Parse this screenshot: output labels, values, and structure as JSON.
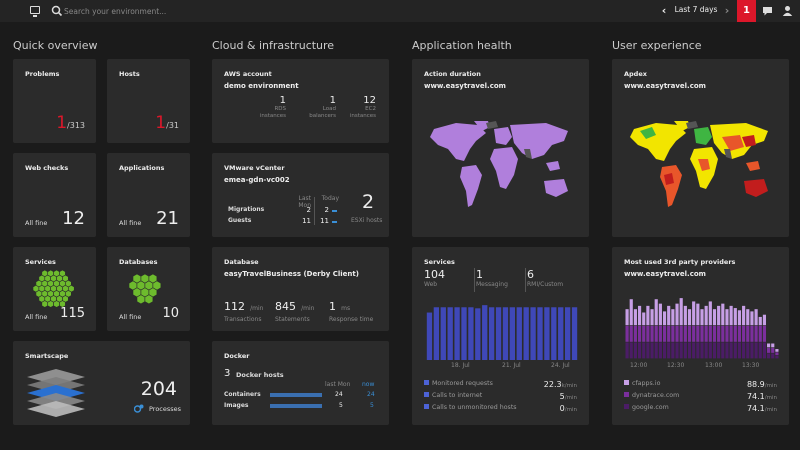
{
  "topbar": {
    "search_placeholder": "Search your environment...",
    "timeframe": "Last 7 days",
    "notifications": "1"
  },
  "sections": {
    "quick": "Quick overview",
    "cloud": "Cloud & infrastructure",
    "app": "Application health",
    "ux": "User experience"
  },
  "quick": {
    "problems": {
      "title": "Problems",
      "current": "1",
      "total": "/313"
    },
    "hosts": {
      "title": "Hosts",
      "current": "1",
      "total": "/31"
    },
    "webchecks": {
      "title": "Web checks",
      "status": "All fine",
      "count": "12"
    },
    "applications": {
      "title": "Applications",
      "status": "All fine",
      "count": "21"
    },
    "services": {
      "title": "Services",
      "status": "All fine",
      "count": "115"
    },
    "databases": {
      "title": "Databases",
      "status": "All fine",
      "count": "10"
    },
    "smartscape": {
      "title": "Smartscape",
      "count": "204",
      "label": "Processes"
    }
  },
  "aws": {
    "title": "AWS account",
    "name": "demo environment",
    "metrics": [
      {
        "value": "1",
        "label1": "RDS",
        "label2": "instances"
      },
      {
        "value": "1",
        "label1": "Load",
        "label2": "balancers"
      },
      {
        "value": "12",
        "label1": "EC2",
        "label2": "instances"
      }
    ]
  },
  "vmware": {
    "title": "VMware vCenter",
    "name": "emea-gdn-vc002",
    "col_last": "Last Mon",
    "col_today": "Today",
    "rows": [
      {
        "label": "Migrations",
        "last": "2",
        "today": "2"
      },
      {
        "label": "Guests",
        "last": "11",
        "today": "11"
      }
    ],
    "hosts_value": "2",
    "hosts_label": "ESXi hosts"
  },
  "database": {
    "title": "Database",
    "name": "easyTravelBusiness (Derby Client)",
    "metrics": [
      {
        "value": "112",
        "unit": "/min",
        "label": "Transactions"
      },
      {
        "value": "845",
        "unit": "/min",
        "label": "Statements"
      },
      {
        "value": "1",
        "unit": "ms",
        "label": "Response time"
      }
    ]
  },
  "docker": {
    "title": "Docker",
    "hosts_value": "3",
    "hosts_label": "Docker hosts",
    "col_last": "last Mon",
    "col_now": "now",
    "rows": [
      {
        "label": "Containers",
        "last": "24",
        "now": "24"
      },
      {
        "label": "Images",
        "last": "5",
        "now": "5"
      }
    ]
  },
  "action_duration": {
    "title": "Action duration",
    "site": "www.easytravel.com"
  },
  "apdex": {
    "title": "Apdex",
    "site": "www.easytravel.com"
  },
  "services_tile": {
    "title": "Services",
    "stats": [
      {
        "value": "104",
        "label": "Web"
      },
      {
        "value": "1",
        "label": "Messaging"
      },
      {
        "value": "6",
        "label": "RMI/Custom"
      }
    ],
    "x_labels": [
      "18. Jul",
      "21. Jul",
      "24. Jul"
    ],
    "legend": [
      {
        "label": "Monitored requests",
        "value": "22.3",
        "unit": "k/min"
      },
      {
        "label": "Calls to internet",
        "value": "5",
        "unit": "/min"
      },
      {
        "label": "Calls to unmonitored hosts",
        "value": "0",
        "unit": "/min"
      }
    ]
  },
  "providers": {
    "title": "Most used 3rd party providers",
    "site": "www.easytravel.com",
    "x_labels": [
      "12:00",
      "12:30",
      "13:00",
      "13:30"
    ],
    "legend": [
      {
        "label": "cfapps.io",
        "value": "88.9",
        "unit": "/min"
      },
      {
        "label": "dynatrace.com",
        "value": "74.1",
        "unit": "/min"
      },
      {
        "label": "google.com",
        "value": "74.1",
        "unit": "/min"
      }
    ]
  },
  "chart_data": [
    {
      "type": "bar",
      "categories": [
        "",
        "",
        "",
        "",
        "",
        "",
        "",
        "",
        "",
        "",
        "",
        "",
        "",
        "",
        "",
        "",
        "",
        "",
        "",
        "",
        "",
        ""
      ],
      "values": [
        90,
        100,
        100,
        100,
        100,
        100,
        100,
        98,
        104,
        100,
        100,
        100,
        100,
        100,
        100,
        100,
        100,
        100,
        100,
        100,
        100,
        100
      ],
      "colors": {
        "bar": "#3f48b8"
      }
    },
    {
      "type": "bar",
      "categories": [
        "",
        "",
        "",
        "",
        "",
        "",
        "",
        "",
        "",
        "",
        "",
        "",
        "",
        "",
        "",
        "",
        "",
        "",
        "",
        "",
        "",
        "",
        "",
        "",
        "",
        "",
        "",
        "",
        "",
        "",
        "",
        "",
        "",
        "",
        "",
        "",
        ""
      ],
      "series": [
        {
          "name": "cfapps.io",
          "values": [
            30,
            30,
            30,
            30,
            30,
            30,
            30,
            30,
            30,
            30,
            30,
            30,
            30,
            30,
            30,
            30,
            30,
            30,
            30,
            30,
            30,
            30,
            30,
            30,
            30,
            30,
            30,
            30,
            30,
            30,
            30,
            30,
            30,
            30,
            10,
            10,
            6
          ]
        },
        {
          "name": "dynatrace.com",
          "values": [
            30,
            30,
            30,
            30,
            30,
            30,
            30,
            30,
            30,
            30,
            30,
            30,
            30,
            30,
            30,
            30,
            30,
            30,
            30,
            30,
            30,
            30,
            30,
            30,
            30,
            30,
            30,
            30,
            30,
            30,
            30,
            30,
            30,
            30,
            10,
            10,
            6
          ]
        },
        {
          "name": "google.com",
          "values": [
            30,
            48,
            30,
            36,
            24,
            36,
            30,
            48,
            40,
            26,
            36,
            30,
            40,
            50,
            36,
            30,
            44,
            40,
            30,
            36,
            44,
            30,
            36,
            40,
            30,
            36,
            32,
            28,
            36,
            30,
            26,
            30,
            16,
            20,
            8,
            8,
            6
          ]
        }
      ],
      "colors": {
        "cfapps.io": "#4b1c66",
        "dynatrace.com": "#7b2f9d",
        "google.com": "#c79fe6"
      }
    }
  ]
}
